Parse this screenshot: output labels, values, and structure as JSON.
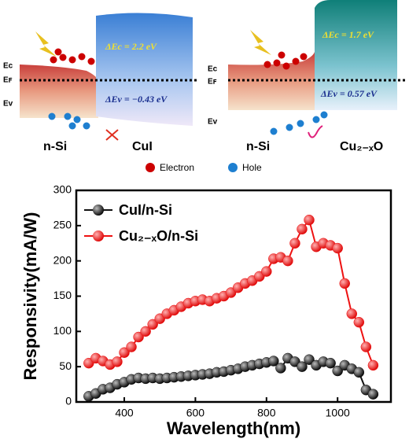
{
  "left_diagram": {
    "ec": "Ec",
    "ef": "Eꜰ",
    "ev": "Ev",
    "delta_ec": "ΔEc = 2.2 eV",
    "delta_ev": "ΔEv = −0.43 eV",
    "left_material": "n-Si",
    "right_material": "CuI"
  },
  "right_diagram": {
    "ec": "Ec",
    "ef": "Eꜰ",
    "ev": "Ev",
    "delta_ec": "ΔEc = 1.7 eV",
    "delta_ev": "ΔEv = 0.57 eV",
    "left_material": "n-Si",
    "right_material": "Cu₂₋ₓO"
  },
  "carrier_legend": {
    "electron": "Electron",
    "hole": "Hole"
  },
  "chart_data": {
    "type": "line",
    "x_label": "Wavelength(nm)",
    "y_label": "Responsivity(mA/W)",
    "x": [
      300,
      320,
      340,
      360,
      380,
      400,
      420,
      440,
      460,
      480,
      500,
      520,
      540,
      560,
      580,
      600,
      620,
      640,
      660,
      680,
      700,
      720,
      740,
      760,
      780,
      800,
      820,
      840,
      860,
      880,
      900,
      920,
      940,
      960,
      980,
      1000,
      1020,
      1040,
      1060,
      1080,
      1100
    ],
    "series": [
      {
        "name": "CuI/n-Si",
        "color": "#111111",
        "values": [
          8,
          12,
          18,
          20,
          25,
          28,
          32,
          34,
          33,
          34,
          33,
          34,
          35,
          36,
          37,
          38,
          39,
          40,
          42,
          43,
          45,
          47,
          50,
          52,
          54,
          56,
          58,
          48,
          62,
          57,
          50,
          60,
          52,
          57,
          55,
          44,
          52,
          47,
          42,
          17,
          11
        ]
      },
      {
        "name": "Cu₂₋ₓO/n-Si",
        "color": "#ee1111",
        "values": [
          55,
          62,
          58,
          53,
          57,
          70,
          78,
          92,
          100,
          110,
          118,
          125,
          130,
          135,
          140,
          143,
          145,
          143,
          147,
          150,
          155,
          162,
          168,
          172,
          178,
          185,
          203,
          205,
          200,
          225,
          245,
          258,
          220,
          225,
          222,
          218,
          168,
          125,
          113,
          78,
          52
        ]
      }
    ],
    "xlim": [
      265,
      1150
    ],
    "ylim": [
      0,
      300
    ],
    "xticks": [
      400,
      600,
      800,
      1000
    ],
    "yticks": [
      0,
      50,
      100,
      150,
      200,
      250,
      300
    ],
    "legend": "upper left"
  }
}
